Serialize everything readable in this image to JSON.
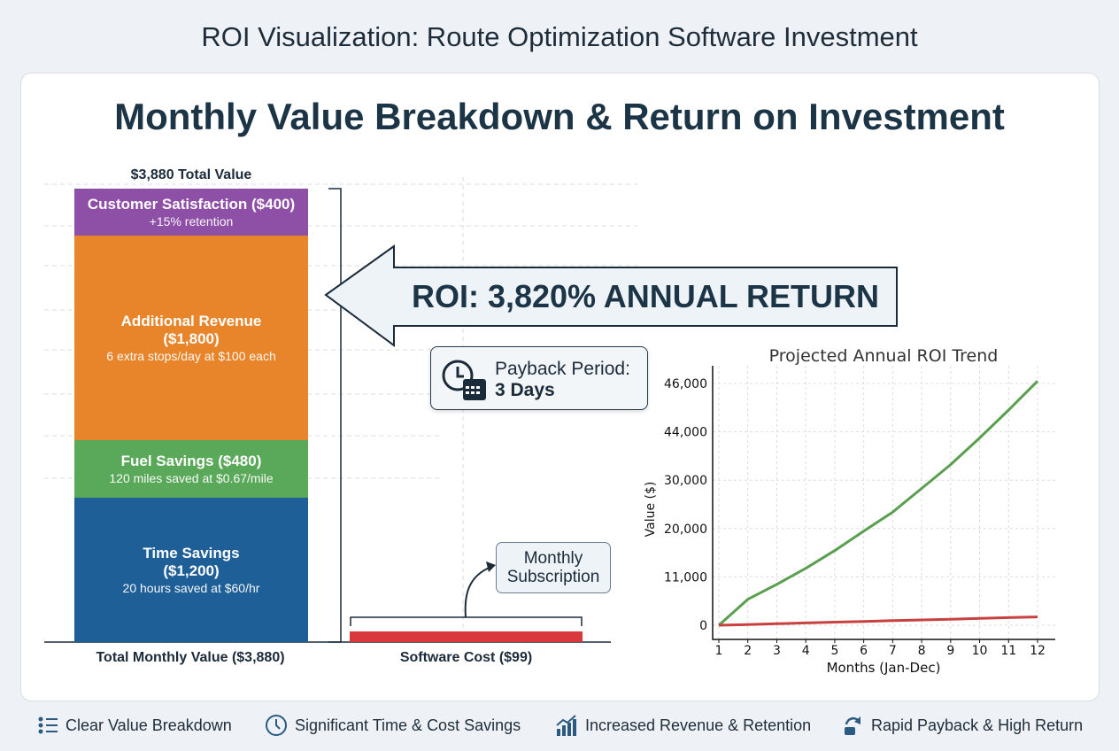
{
  "page_title": "ROI Visualization: Route Optimization Software Investment",
  "main_title": "Monthly Value Breakdown & Return on Investment",
  "stacked_bar": {
    "total_label": "$3,880 Total Value",
    "x_label": "Total Monthly Value ($3,880)",
    "segments": [
      {
        "title": "Customer Satisfaction ($400)",
        "subtitle": "+15% retention",
        "value": 400,
        "color": "#8e4fa6"
      },
      {
        "title": "Additional Revenue ($1,800)",
        "subtitle": "6 extra stops/day at $100 each",
        "value": 1800,
        "color": "#e8852a"
      },
      {
        "title": "Fuel Savings ($480)",
        "subtitle": "120 miles saved at $0.67/mile",
        "value": 480,
        "color": "#5aa85a"
      },
      {
        "title": "Time Savings ($1,200)",
        "subtitle": "20 hours saved at $60/hr",
        "value": 1200,
        "color": "#1f5f98"
      }
    ]
  },
  "software_bar": {
    "x_label": "Software Cost ($99)",
    "value": 99,
    "color": "#d9383c",
    "annotation": "Monthly Subscription"
  },
  "roi_callout": "ROI: 3,820% ANNUAL RETURN",
  "payback": {
    "label": "Payback Period:",
    "value": "3 Days",
    "icon": "clock-calendar-icon"
  },
  "chart_data": {
    "type": "line",
    "title": "Projected Annual ROI Trend",
    "xlabel": "Months (Jan-Dec)",
    "ylabel": "Value ($)",
    "x": [
      1,
      2,
      3,
      4,
      5,
      6,
      7,
      8,
      9,
      10,
      11,
      12
    ],
    "y_tick_labels": [
      "0",
      "11,000",
      "20,000",
      "30,000",
      "44,000",
      "46,000"
    ],
    "y_tick_values": [
      0,
      11000,
      20000,
      30000,
      44000,
      46000
    ],
    "grid": true,
    "series": [
      {
        "color": "#5a9e50",
        "values": [
          0,
          5900,
          9300,
          12600,
          15900,
          19500,
          23400,
          28300,
          34500,
          42200,
          44900,
          46100
        ]
      },
      {
        "color": "#c84040",
        "values": [
          0,
          170,
          350,
          520,
          700,
          870,
          1040,
          1210,
          1380,
          1560,
          1730,
          1900
        ]
      }
    ]
  },
  "footer": [
    {
      "label": "Clear Value Breakdown",
      "icon": "list-icon"
    },
    {
      "label": "Significant Time & Cost Savings",
      "icon": "clock-icon"
    },
    {
      "label": "Increased Revenue & Retention",
      "icon": "growth-chart-icon"
    },
    {
      "label": "Rapid Payback & High Return",
      "icon": "money-return-icon"
    }
  ]
}
